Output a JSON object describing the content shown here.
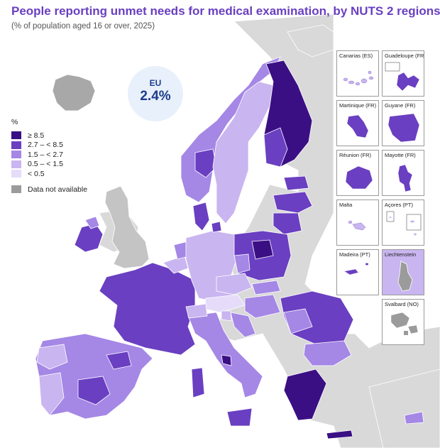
{
  "title": "People reporting unmet needs for medical examination, by NUTS 2 regions",
  "subtitle": "(% of population aged 16 or over, 2025)",
  "eu_badge": {
    "label": "EU",
    "value": "2.4%"
  },
  "legend": {
    "unit": "%",
    "classes": [
      {
        "label": "≥ 8.5",
        "color": "#3b0f84"
      },
      {
        "label": "2.7 – < 8.5",
        "color": "#6a3fc1"
      },
      {
        "label": "1.5 – < 2.7",
        "color": "#a587e6"
      },
      {
        "label": "0.5 – < 1.5",
        "color": "#c9b5f0"
      },
      {
        "label": "< 0.5",
        "color": "#e6dcfa"
      }
    ],
    "not_available": {
      "label": "Data not available",
      "color": "#9b9b9b"
    }
  },
  "insets": [
    {
      "name": "Canarias (ES)",
      "fill": "#c9b5f0"
    },
    {
      "name": "Guadeloupe (FR)",
      "fill": "#6a3fc1"
    },
    {
      "name": "Martinique (FR)",
      "fill": "#6a3fc1"
    },
    {
      "name": "Guyane (FR)",
      "fill": "#6a3fc1"
    },
    {
      "name": "Réunion (FR)",
      "fill": "#6a3fc1"
    },
    {
      "name": "Mayotte (FR)",
      "fill": "#6a3fc1"
    },
    {
      "name": "Malta",
      "fill": "#c9b5f0"
    },
    {
      "name": "Açores (PT)",
      "fill": "#c9b5f0"
    },
    {
      "name": "Madeira (PT)",
      "fill": "#6a3fc1"
    },
    {
      "name": "Liechtenstein",
      "fill": "#9b9b9b"
    },
    {
      "name": "Svalbard (NO)",
      "fill": "#9b9b9b"
    }
  ]
}
